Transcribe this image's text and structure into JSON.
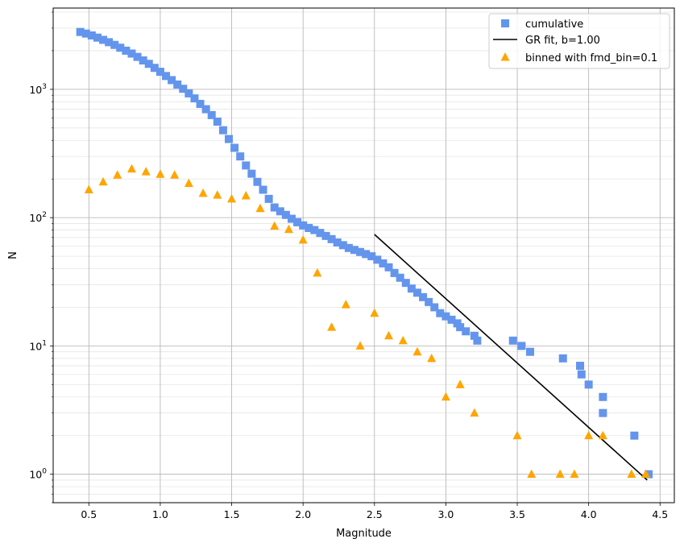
{
  "chart_data": {
    "type": "scatter",
    "xlabel": "Magnitude",
    "ylabel": "N",
    "xlim": [
      0.25,
      4.6
    ],
    "ylim": [
      0.6,
      4300
    ],
    "yscale": "log",
    "grid": true,
    "minor_grid_y": true,
    "legend_position": "top-right",
    "x_ticks": [
      0.5,
      1.0,
      1.5,
      2.0,
      2.5,
      3.0,
      3.5,
      4.0,
      4.5
    ],
    "x_tick_labels": [
      "0.5",
      "1.0",
      "1.5",
      "2.0",
      "2.5",
      "3.0",
      "3.5",
      "4.0",
      "4.5"
    ],
    "y_ticks": [
      1,
      10,
      100,
      1000
    ],
    "y_tick_labels": [
      {
        "base": "10",
        "exp": "0"
      },
      {
        "base": "10",
        "exp": "1"
      },
      {
        "base": "10",
        "exp": "2"
      },
      {
        "base": "10",
        "exp": "3"
      }
    ],
    "series": [
      {
        "name": "cumulative",
        "marker": "square",
        "color": "#6495ED",
        "x": [
          0.44,
          0.48,
          0.52,
          0.56,
          0.6,
          0.64,
          0.68,
          0.72,
          0.76,
          0.8,
          0.84,
          0.88,
          0.92,
          0.96,
          1.0,
          1.04,
          1.08,
          1.12,
          1.16,
          1.2,
          1.24,
          1.28,
          1.32,
          1.36,
          1.4,
          1.44,
          1.48,
          1.52,
          1.56,
          1.6,
          1.64,
          1.68,
          1.72,
          1.76,
          1.8,
          1.84,
          1.88,
          1.92,
          1.96,
          2.0,
          2.04,
          2.08,
          2.12,
          2.16,
          2.2,
          2.24,
          2.28,
          2.32,
          2.36,
          2.4,
          2.44,
          2.48,
          2.52,
          2.56,
          2.6,
          2.64,
          2.68,
          2.72,
          2.76,
          2.8,
          2.84,
          2.88,
          2.92,
          2.96,
          3.0,
          3.04,
          3.08,
          3.1,
          3.14,
          3.2,
          3.22,
          3.47,
          3.53,
          3.59,
          3.82,
          3.94,
          3.95,
          4.0,
          4.1,
          4.1,
          4.32,
          4.42
        ],
        "y": [
          2800,
          2720,
          2630,
          2530,
          2430,
          2330,
          2220,
          2110,
          2000,
          1900,
          1790,
          1680,
          1580,
          1470,
          1370,
          1270,
          1180,
          1090,
          1010,
          930,
          850,
          770,
          700,
          630,
          560,
          480,
          410,
          350,
          300,
          255,
          220,
          190,
          165,
          140,
          120,
          112,
          105,
          98,
          92,
          87,
          83,
          80,
          76,
          72,
          68,
          64,
          61,
          58,
          56,
          54,
          52,
          50,
          47,
          44,
          41,
          37,
          34,
          31,
          28,
          26,
          24,
          22,
          20,
          18,
          17,
          16,
          15,
          14,
          13,
          12,
          11,
          11,
          10,
          9,
          8,
          7,
          6,
          5,
          4,
          3,
          2,
          1
        ]
      },
      {
        "name": "GR fit, b=1.00",
        "marker": "line",
        "color": "#000000",
        "x": [
          2.5,
          4.41
        ],
        "y": [
          74,
          0.9
        ]
      },
      {
        "name": "binned with fmd_bin=0.1",
        "marker": "triangle",
        "color": "#FFA500",
        "x": [
          0.5,
          0.6,
          0.7,
          0.8,
          0.9,
          1.0,
          1.1,
          1.2,
          1.3,
          1.4,
          1.5,
          1.6,
          1.7,
          1.8,
          1.9,
          2.0,
          2.1,
          2.2,
          2.3,
          2.4,
          2.5,
          2.6,
          2.7,
          2.8,
          2.9,
          3.0,
          3.1,
          3.2,
          3.5,
          3.6,
          3.8,
          3.9,
          4.0,
          4.1,
          4.3,
          4.4
        ],
        "y": [
          165,
          190,
          215,
          240,
          228,
          218,
          215,
          185,
          155,
          150,
          140,
          148,
          118,
          86,
          81,
          67,
          37,
          14,
          21,
          10,
          18,
          12,
          11,
          9,
          8,
          4,
          5,
          3,
          2,
          1,
          1,
          1,
          2,
          2,
          1,
          1
        ]
      }
    ]
  }
}
